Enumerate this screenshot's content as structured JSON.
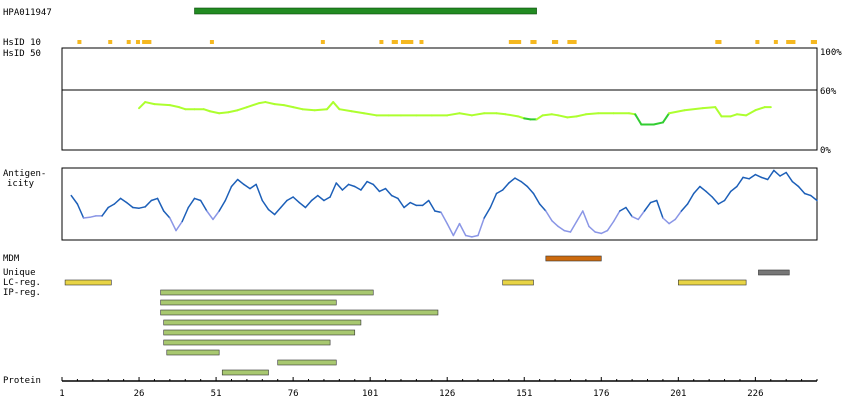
{
  "chart_data": {
    "type": "line",
    "x_range": [
      1,
      246
    ],
    "x_ticks": [
      1,
      26,
      51,
      76,
      101,
      126,
      151,
      176,
      201,
      226
    ],
    "antigen": {
      "label": "HPA011947",
      "start": 44,
      "end": 155,
      "color": "#228b22"
    },
    "hsid10": {
      "label": "HsID 10",
      "color": "#f5b820",
      "segments": [
        [
          6,
          7
        ],
        [
          16,
          17
        ],
        [
          22,
          23
        ],
        [
          25,
          26
        ],
        [
          27,
          30
        ],
        [
          49,
          50
        ],
        [
          85,
          86
        ],
        [
          104,
          105
        ],
        [
          108,
          110
        ],
        [
          111,
          115
        ],
        [
          117,
          118
        ],
        [
          146,
          150
        ],
        [
          153,
          155
        ],
        [
          160,
          162
        ],
        [
          165,
          168
        ],
        [
          213,
          215
        ],
        [
          226,
          227
        ],
        [
          232,
          233
        ],
        [
          236,
          239
        ],
        [
          244,
          246
        ]
      ]
    },
    "hsid50": {
      "label": "HsID 50",
      "tick_labels": [
        "100%",
        "60%",
        "0%"
      ],
      "points": [
        [
          26,
          0.41
        ],
        [
          28,
          0.47
        ],
        [
          31,
          0.45
        ],
        [
          36,
          0.44
        ],
        [
          39,
          0.42
        ],
        [
          41,
          0.4
        ],
        [
          44,
          0.4
        ],
        [
          47,
          0.4
        ],
        [
          49,
          0.38
        ],
        [
          52,
          0.36
        ],
        [
          55,
          0.37
        ],
        [
          58,
          0.39
        ],
        [
          61,
          0.42
        ],
        [
          65,
          0.46
        ],
        [
          67,
          0.47
        ],
        [
          70,
          0.45
        ],
        [
          73,
          0.44
        ],
        [
          76,
          0.42
        ],
        [
          79,
          0.4
        ],
        [
          83,
          0.39
        ],
        [
          87,
          0.4
        ],
        [
          89,
          0.47
        ],
        [
          91,
          0.4
        ],
        [
          95,
          0.38
        ],
        [
          99,
          0.36
        ],
        [
          103,
          0.34
        ],
        [
          107,
          0.34
        ],
        [
          111,
          0.34
        ],
        [
          116,
          0.34
        ],
        [
          121,
          0.34
        ],
        [
          126,
          0.34
        ],
        [
          130,
          0.36
        ],
        [
          134,
          0.34
        ],
        [
          138,
          0.36
        ],
        [
          142,
          0.36
        ],
        [
          145,
          0.35
        ],
        [
          149,
          0.33
        ],
        [
          151,
          0.31
        ],
        [
          153,
          0.3
        ],
        [
          155,
          0.3
        ],
        [
          157,
          0.34
        ],
        [
          160,
          0.35
        ],
        [
          162,
          0.34
        ],
        [
          165,
          0.32
        ],
        [
          168,
          0.33
        ],
        [
          171,
          0.35
        ],
        [
          175,
          0.36
        ],
        [
          180,
          0.36
        ],
        [
          185,
          0.36
        ],
        [
          187,
          0.35
        ],
        [
          189,
          0.25
        ],
        [
          193,
          0.25
        ],
        [
          196,
          0.27
        ],
        [
          198,
          0.36
        ],
        [
          203,
          0.39
        ],
        [
          209,
          0.41
        ],
        [
          213,
          0.42
        ],
        [
          215,
          0.33
        ],
        [
          218,
          0.33
        ],
        [
          220,
          0.35
        ],
        [
          223,
          0.34
        ],
        [
          226,
          0.39
        ],
        [
          229,
          0.42
        ],
        [
          231,
          0.42
        ]
      ],
      "color_high": "#adff2f",
      "color_low": "#32cd32"
    },
    "antigenicity": {
      "label_line1": "Antigen-",
      "label_line2": "icity",
      "points": [
        [
          4,
          0.62
        ],
        [
          6,
          0.5
        ],
        [
          8,
          0.3
        ],
        [
          10,
          0.31
        ],
        [
          12,
          0.33
        ],
        [
          14,
          0.33
        ],
        [
          16,
          0.45
        ],
        [
          18,
          0.5
        ],
        [
          20,
          0.58
        ],
        [
          22,
          0.52
        ],
        [
          24,
          0.45
        ],
        [
          26,
          0.44
        ],
        [
          28,
          0.46
        ],
        [
          30,
          0.55
        ],
        [
          32,
          0.58
        ],
        [
          34,
          0.4
        ],
        [
          36,
          0.3
        ],
        [
          38,
          0.12
        ],
        [
          40,
          0.25
        ],
        [
          42,
          0.45
        ],
        [
          44,
          0.58
        ],
        [
          46,
          0.55
        ],
        [
          48,
          0.4
        ],
        [
          50,
          0.28
        ],
        [
          52,
          0.4
        ],
        [
          54,
          0.55
        ],
        [
          56,
          0.75
        ],
        [
          58,
          0.85
        ],
        [
          60,
          0.78
        ],
        [
          62,
          0.72
        ],
        [
          64,
          0.78
        ],
        [
          66,
          0.55
        ],
        [
          68,
          0.42
        ],
        [
          70,
          0.35
        ],
        [
          72,
          0.45
        ],
        [
          74,
          0.55
        ],
        [
          76,
          0.6
        ],
        [
          78,
          0.52
        ],
        [
          80,
          0.45
        ],
        [
          82,
          0.55
        ],
        [
          84,
          0.62
        ],
        [
          86,
          0.55
        ],
        [
          88,
          0.6
        ],
        [
          90,
          0.8
        ],
        [
          92,
          0.7
        ],
        [
          94,
          0.78
        ],
        [
          96,
          0.75
        ],
        [
          98,
          0.7
        ],
        [
          100,
          0.82
        ],
        [
          102,
          0.78
        ],
        [
          104,
          0.68
        ],
        [
          106,
          0.72
        ],
        [
          108,
          0.62
        ],
        [
          110,
          0.58
        ],
        [
          112,
          0.45
        ],
        [
          114,
          0.52
        ],
        [
          116,
          0.48
        ],
        [
          118,
          0.48
        ],
        [
          120,
          0.55
        ],
        [
          122,
          0.4
        ],
        [
          124,
          0.38
        ],
        [
          126,
          0.22
        ],
        [
          128,
          0.05
        ],
        [
          130,
          0.22
        ],
        [
          132,
          0.05
        ],
        [
          134,
          0.03
        ],
        [
          136,
          0.05
        ],
        [
          138,
          0.3
        ],
        [
          140,
          0.45
        ],
        [
          142,
          0.65
        ],
        [
          144,
          0.7
        ],
        [
          146,
          0.8
        ],
        [
          148,
          0.87
        ],
        [
          150,
          0.82
        ],
        [
          152,
          0.75
        ],
        [
          154,
          0.65
        ],
        [
          156,
          0.5
        ],
        [
          158,
          0.4
        ],
        [
          160,
          0.26
        ],
        [
          162,
          0.18
        ],
        [
          164,
          0.12
        ],
        [
          166,
          0.1
        ],
        [
          168,
          0.25
        ],
        [
          170,
          0.4
        ],
        [
          172,
          0.18
        ],
        [
          174,
          0.1
        ],
        [
          176,
          0.08
        ],
        [
          178,
          0.12
        ],
        [
          180,
          0.25
        ],
        [
          182,
          0.4
        ],
        [
          184,
          0.45
        ],
        [
          186,
          0.32
        ],
        [
          188,
          0.28
        ],
        [
          190,
          0.4
        ],
        [
          192,
          0.52
        ],
        [
          194,
          0.55
        ],
        [
          196,
          0.3
        ],
        [
          198,
          0.22
        ],
        [
          200,
          0.28
        ],
        [
          202,
          0.4
        ],
        [
          204,
          0.5
        ],
        [
          206,
          0.65
        ],
        [
          208,
          0.75
        ],
        [
          210,
          0.68
        ],
        [
          212,
          0.6
        ],
        [
          214,
          0.5
        ],
        [
          216,
          0.55
        ],
        [
          218,
          0.68
        ],
        [
          220,
          0.75
        ],
        [
          222,
          0.88
        ],
        [
          224,
          0.86
        ],
        [
          226,
          0.92
        ],
        [
          228,
          0.88
        ],
        [
          230,
          0.85
        ],
        [
          232,
          0.98
        ],
        [
          234,
          0.9
        ],
        [
          236,
          0.95
        ],
        [
          238,
          0.82
        ],
        [
          240,
          0.75
        ],
        [
          242,
          0.65
        ],
        [
          244,
          0.62
        ],
        [
          246,
          0.55
        ]
      ],
      "color_high": "#1c5fb8",
      "color_low": "#8a96e6"
    },
    "mdm": {
      "label": "MDM",
      "color": "#cc6a0e",
      "segments": [
        [
          158,
          176
        ]
      ]
    },
    "unique": {
      "label": "Unique",
      "color": "#777777",
      "segments": [
        [
          227,
          237
        ]
      ]
    },
    "lc_reg": {
      "label": "LC-reg.",
      "color": "#e8d445",
      "segments": [
        [
          2,
          17
        ],
        [
          144,
          154
        ],
        [
          201,
          223
        ]
      ]
    },
    "ip_reg": {
      "label": "IP-reg.",
      "color": "#a8c870",
      "segments": [
        [
          33,
          102
        ],
        [
          33,
          90
        ],
        [
          33,
          123
        ],
        [
          34,
          98
        ],
        [
          34,
          96
        ],
        [
          34,
          88
        ],
        [
          35,
          52
        ],
        [
          71,
          90
        ],
        [
          53,
          68
        ]
      ]
    },
    "protein": {
      "label": "Protein"
    }
  }
}
